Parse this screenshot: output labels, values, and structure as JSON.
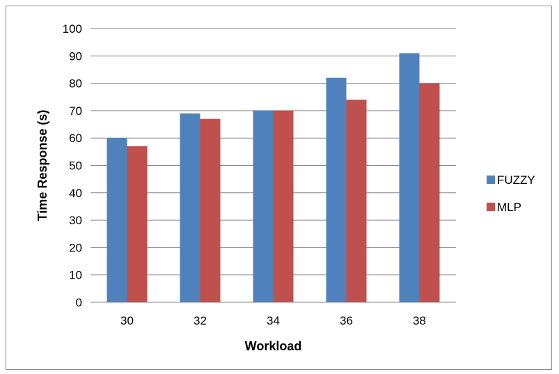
{
  "chart_data": {
    "type": "bar",
    "categories": [
      "30",
      "32",
      "34",
      "36",
      "38"
    ],
    "series": [
      {
        "name": "FUZZY",
        "values": [
          60,
          69,
          70,
          82,
          91
        ],
        "color": "#4f81bd"
      },
      {
        "name": "MLP",
        "values": [
          57,
          67,
          70,
          74,
          80
        ],
        "color": "#c0504d"
      }
    ],
    "xlabel": "Workload",
    "ylabel": "Time Response (s)",
    "ylim": [
      0,
      100
    ],
    "yticks": [
      0,
      10,
      20,
      30,
      40,
      50,
      60,
      70,
      80,
      90,
      100
    ],
    "grid": true,
    "legend_position": "right"
  }
}
